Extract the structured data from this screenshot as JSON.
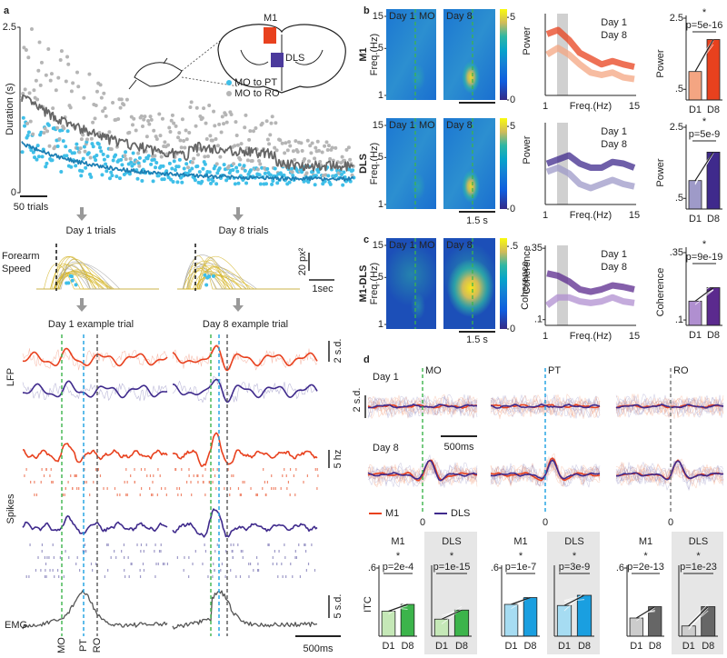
{
  "panel_a": {
    "label": "a",
    "duration": {
      "ylabel": "Duration (s)",
      "ylim": [
        0,
        2.5
      ],
      "yticks": [
        0,
        2.5
      ],
      "scale_bar": "50 trials"
    },
    "brain": {
      "m1": "M1",
      "dls": "DLS"
    },
    "legend": [
      "MO to PT",
      "MO to RO"
    ],
    "trials": {
      "day1": "Day 1 trials",
      "day8": "Day 8 trials",
      "ylabel": [
        "Forearm",
        "Speed"
      ],
      "scale_y": "20 px²",
      "scale_x": "1sec"
    },
    "example": {
      "day1": "Day 1 example trial",
      "day8": "Day 8 example trial",
      "lfp": "LFP",
      "lfp_scale": "2 s.d.",
      "spikes": "Spikes",
      "spikes_scale": "5 hz",
      "emg": "EMG",
      "emg_scale": "5 s.d.",
      "time_scale": "500ms",
      "events": [
        "MO",
        "PT",
        "RO"
      ]
    }
  },
  "panel_b": {
    "label": "b",
    "heatmap": {
      "rows": [
        "M1",
        "DLS"
      ],
      "freq_label": "Freq.(Hz)",
      "freq_lim": [
        1,
        15
      ],
      "freq_log": true,
      "freq_ticks": [
        15,
        5,
        1
      ],
      "day1": "Day 1",
      "day8": "Day 8",
      "event": "MO",
      "colorbar_label": "Power",
      "colorbar_lim": [
        0,
        5.5
      ],
      "colorbar_ticks": [
        5,
        0
      ],
      "time_scale": "1.5 s"
    },
    "spectrum": {
      "legend": [
        "Day 1",
        "Day 8"
      ],
      "xlabel": "Freq.(Hz)",
      "xticks": [
        1,
        15
      ]
    },
    "bars": [
      {
        "type": "bar",
        "ylabel": "Power",
        "categories": [
          "D1",
          "D8"
        ],
        "values": [
          1.0,
          1.9
        ],
        "colors": [
          "#f4a582",
          "#e8411e"
        ],
        "ylim": [
          0.2,
          2.5
        ],
        "yticks": [
          2.5,
          {
            "value": 0.5,
            "label": ".5"
          }
        ],
        "stat": "*",
        "p": "p=5e-16"
      },
      {
        "type": "bar",
        "ylabel": "Power",
        "categories": [
          "D1",
          "D8"
        ],
        "values": [
          1.0,
          1.8
        ],
        "colors": [
          "#9e9ac8",
          "#3f2a8c"
        ],
        "ylim": [
          0.2,
          2.5
        ],
        "yticks": [
          2.5,
          {
            "value": 0.5,
            "label": ".5"
          }
        ],
        "stat": "*",
        "p": "p=5e-9"
      }
    ]
  },
  "panel_c": {
    "label": "c",
    "heatmap": {
      "row": "M1-DLS",
      "freq_label": "Freq.(Hz)",
      "freq_lim": [
        1,
        15
      ],
      "freq_log": true,
      "freq_ticks": [
        15,
        5,
        1
      ],
      "day1": "Day 1",
      "day8": "Day 8",
      "event": "MO",
      "colorbar_label": "Coherence",
      "colorbar_lim": [
        0,
        0.55
      ],
      "colorbar_ticks": [
        {
          "value": 0.5,
          "label": ".5"
        },
        0
      ],
      "time_scale": "1.5 s"
    },
    "spectrum": {
      "ylabel": "Coherence",
      "ylim": [
        0.08,
        0.36
      ],
      "yticks": [
        {
          "value": 0.35,
          "label": ".35"
        },
        {
          "value": 0.1,
          "label": ".1"
        }
      ],
      "legend": [
        "Day 1",
        "Day 8"
      ],
      "xlabel": "Freq.(Hz)",
      "xticks": [
        1,
        15
      ]
    },
    "bars": {
      "type": "bar",
      "ylabel": "Coherence",
      "categories": [
        "D1",
        "D8"
      ],
      "values": [
        0.17,
        0.22
      ],
      "colors": [
        "#b08fd0",
        "#5b2a8e"
      ],
      "ylim": [
        0.08,
        0.36
      ],
      "yticks": [
        {
          "value": 0.35,
          "label": ".35"
        },
        {
          "value": 0.1,
          "label": ".1"
        }
      ],
      "stat": "*",
      "p": "p=9e-19"
    }
  },
  "panel_d": {
    "label": "d",
    "rows": [
      "Day 1",
      "Day 8"
    ],
    "scale_y": "2 s.d.",
    "time_scale": "500ms",
    "events": [
      "MO",
      "PT",
      "RO"
    ],
    "zero_labels": [
      0,
      0,
      0
    ],
    "legend": [
      "M1",
      "DLS"
    ],
    "itc": {
      "ylabel": "ITC",
      "ylim": [
        0,
        0.6
      ],
      "yticks": [
        {
          "value": 0.6,
          "label": ".6"
        }
      ],
      "categories": [
        "D1",
        "D8"
      ],
      "groups": [
        {
          "colors": [
            "#c5e8b7",
            "#3cb44b"
          ],
          "panels": [
            {
              "name": "M1",
              "stat": "*",
              "p": "p=2e-4",
              "values": [
                0.22,
                0.28
              ]
            },
            {
              "name": "DLS",
              "stat": "*",
              "p": "p=1e-15",
              "values": [
                0.15,
                0.23
              ]
            }
          ]
        },
        {
          "colors": [
            "#a6dcf2",
            "#1a9fe0"
          ],
          "panels": [
            {
              "name": "M1",
              "stat": "*",
              "p": "p=1e-7",
              "values": [
                0.28,
                0.34
              ]
            },
            {
              "name": "DLS",
              "stat": "*",
              "p": "p=3e-9",
              "values": [
                0.27,
                0.36
              ]
            }
          ]
        },
        {
          "colors": [
            "#cccccc",
            "#666666"
          ],
          "panels": [
            {
              "name": "M1",
              "stat": "*",
              "p": "p=2e-13",
              "values": [
                0.16,
                0.26
              ]
            },
            {
              "name": "DLS",
              "stat": "*",
              "p": "p=1e-23",
              "values": [
                0.09,
                0.26
              ]
            }
          ]
        }
      ]
    }
  }
}
